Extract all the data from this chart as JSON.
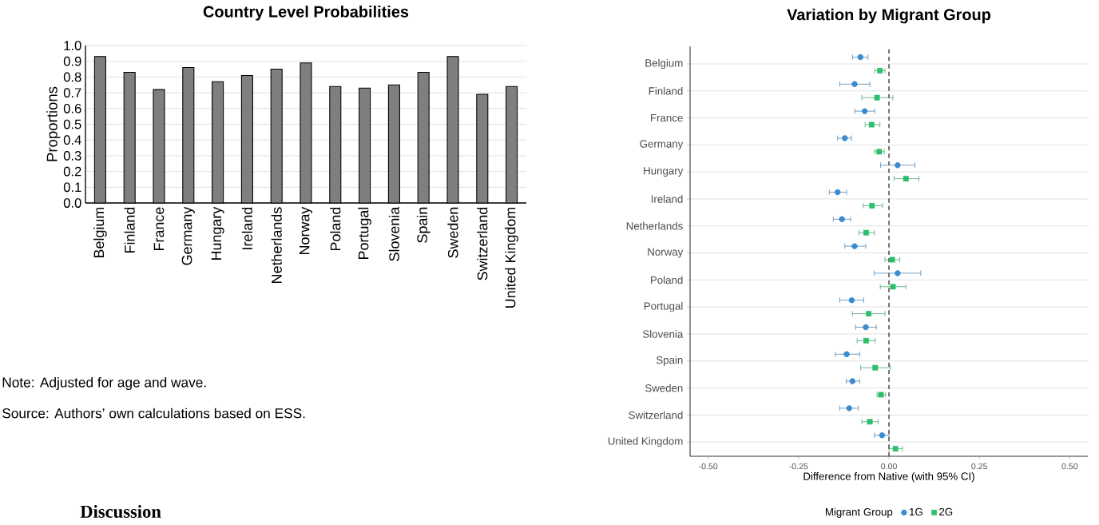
{
  "chart_data": [
    {
      "type": "bar",
      "title": "Country Level Probabilities",
      "ylabel": "Proportions",
      "categories": [
        "Belgium",
        "Finland",
        "France",
        "Germany",
        "Hungary",
        "Ireland",
        "Netherlands",
        "Norway",
        "Poland",
        "Portugal",
        "Slovenia",
        "Spain",
        "Sweden",
        "Switzerland",
        "United Kingdom"
      ],
      "values": [
        0.93,
        0.83,
        0.72,
        0.86,
        0.77,
        0.81,
        0.85,
        0.89,
        0.74,
        0.73,
        0.75,
        0.83,
        0.93,
        0.69,
        0.74
      ],
      "color": "#7f7f7f",
      "ylim": [
        0,
        1
      ],
      "yticks": [
        {
          "value": 0,
          "label": "0.0"
        },
        0.1,
        0.2,
        0.3,
        0.4,
        0.5,
        0.6,
        0.7,
        0.8,
        0.9,
        {
          "value": 1,
          "label": "1.0"
        }
      ],
      "grid": "y",
      "annotations": [
        "Note: Adjusted for age and wave.",
        "Source: Authors’ own calculations based on ESS.",
        "Discussion"
      ]
    },
    {
      "type": "scatter",
      "orientation": "horizontal",
      "title": "Variation by Migrant Group",
      "xlabel": "Difference from Native (with 95% CI)",
      "legend_title": "Migrant Group",
      "categories": [
        "Belgium",
        "Finland",
        "France",
        "Germany",
        "Hungary",
        "Ireland",
        "Netherlands",
        "Norway",
        "Poland",
        "Portugal",
        "Slovenia",
        "Spain",
        "Sweden",
        "Switzerland",
        "United Kingdom"
      ],
      "series": [
        {
          "name": "1G",
          "color": "#3b8bd0",
          "marker": "circle",
          "values": [
            -0.079,
            -0.095,
            -0.067,
            -0.122,
            0.024,
            -0.142,
            -0.13,
            -0.095,
            0.024,
            -0.103,
            -0.064,
            -0.117,
            -0.101,
            -0.11,
            -0.019
          ],
          "errors": [
            [
              -0.101,
              -0.058
            ],
            [
              -0.136,
              -0.053
            ],
            [
              -0.094,
              -0.039
            ],
            [
              -0.142,
              -0.104
            ],
            [
              -0.023,
              0.072
            ],
            [
              -0.165,
              -0.117
            ],
            [
              -0.154,
              -0.106
            ],
            [
              -0.122,
              -0.064
            ],
            [
              -0.041,
              0.088
            ],
            [
              -0.136,
              -0.07
            ],
            [
              -0.092,
              -0.035
            ],
            [
              -0.148,
              -0.081
            ],
            [
              -0.118,
              -0.081
            ],
            [
              -0.136,
              -0.085
            ],
            [
              -0.04,
              0.0
            ]
          ]
        },
        {
          "name": "2G",
          "color": "#2dbf6b",
          "marker": "square",
          "values": [
            -0.025,
            -0.033,
            -0.048,
            -0.027,
            0.047,
            -0.047,
            -0.063,
            0.009,
            0.011,
            -0.056,
            -0.063,
            -0.038,
            -0.022,
            -0.053,
            0.018
          ],
          "errors": [
            [
              -0.039,
              -0.011
            ],
            [
              -0.075,
              0.011
            ],
            [
              -0.066,
              -0.025
            ],
            [
              -0.04,
              -0.013
            ],
            [
              0.014,
              0.083
            ],
            [
              -0.071,
              -0.018
            ],
            [
              -0.083,
              -0.04
            ],
            [
              -0.011,
              0.03
            ],
            [
              -0.024,
              0.047
            ],
            [
              -0.101,
              -0.011
            ],
            [
              -0.088,
              -0.038
            ],
            [
              -0.078,
              0.004
            ],
            [
              -0.033,
              -0.009
            ],
            [
              -0.075,
              -0.03
            ],
            [
              0.0,
              0.037
            ]
          ]
        }
      ],
      "xlim": [
        -0.55,
        0.55
      ],
      "xticks": [
        {
          "value": -0.5,
          "label": "-0.50"
        },
        -0.25,
        {
          "value": 0,
          "label": "0.00"
        },
        0.25,
        {
          "value": 0.5,
          "label": "0.50"
        }
      ],
      "grid": "y",
      "legend": "bottom",
      "ref_lines": [
        {
          "axis": "x",
          "value": 0,
          "line_style": "dashed",
          "color": "#555555"
        }
      ]
    }
  ]
}
